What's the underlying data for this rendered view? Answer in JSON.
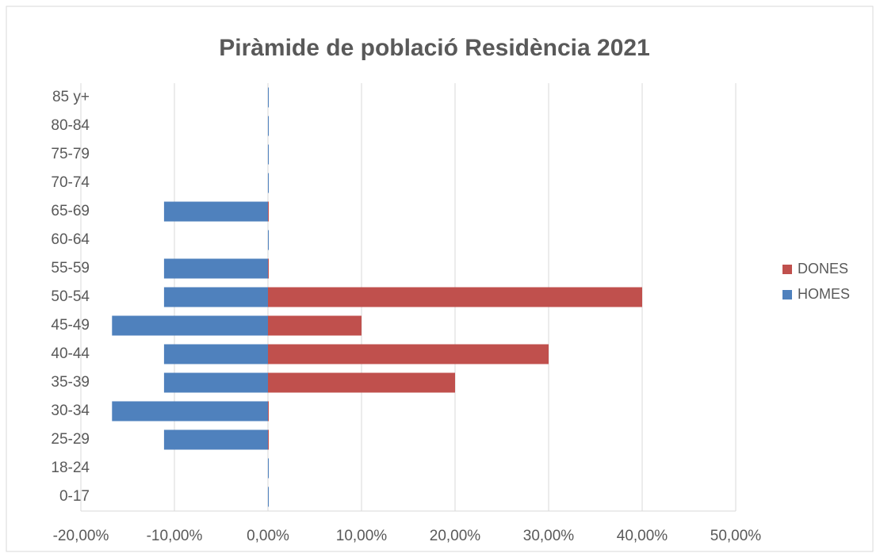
{
  "chart_data": {
    "type": "bar",
    "orientation": "horizontal",
    "title": "Piràmide de població Residència 2021",
    "categories": [
      "0-17",
      "18-24",
      "25-29",
      "30-34",
      "35-39",
      "40-44",
      "45-49",
      "50-54",
      "55-59",
      "60-64",
      "65-69",
      "70-74",
      "75-79",
      "80-84",
      "85 y+"
    ],
    "series": [
      {
        "name": "DONES",
        "color": "#c0504d",
        "values": [
          0,
          0,
          0,
          0,
          20,
          30,
          10,
          40,
          0,
          0,
          0,
          0,
          0,
          0,
          0
        ]
      },
      {
        "name": "HOMES",
        "color": "#4f81bd",
        "values": [
          0,
          0,
          -11.11,
          -16.67,
          -11.11,
          -11.11,
          -16.67,
          -11.11,
          -11.11,
          0,
          -11.11,
          0,
          0,
          0,
          0
        ]
      }
    ],
    "xlim": [
      -20,
      50
    ],
    "xticks": [
      {
        "value": -20,
        "label": "-20,00%"
      },
      {
        "value": -10,
        "label": "-10,00%"
      },
      {
        "value": 0,
        "label": "0,00%"
      },
      {
        "value": 10,
        "label": "10,00%"
      },
      {
        "value": 20,
        "label": "20,00%"
      },
      {
        "value": 30,
        "label": "30,00%"
      },
      {
        "value": 40,
        "label": "40,00%"
      },
      {
        "value": 50,
        "label": "50,00%"
      }
    ],
    "grid": true,
    "legend": "right"
  }
}
